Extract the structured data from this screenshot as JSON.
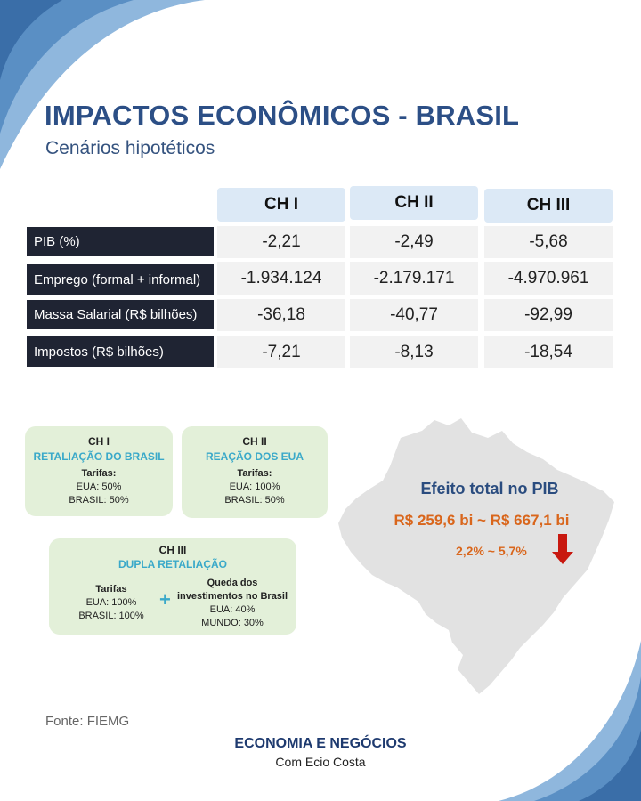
{
  "title": "IMPACTOS ECONÔMICOS - BRASIL",
  "subtitle": "Cenários hipotéticos",
  "table": {
    "columns": [
      "CH I",
      "CH II",
      "CH III"
    ],
    "rows": [
      {
        "label": "PIB (%)",
        "values": [
          "-2,21",
          "-2,49",
          "-5,68"
        ]
      },
      {
        "label": "Emprego (formal + informal)",
        "values": [
          "-1.934.124",
          "-2.179.171",
          "-4.970.961"
        ]
      },
      {
        "label": "Massa Salarial (R$ bilhões)",
        "values": [
          "-36,18",
          "-40,77",
          "-92,99"
        ]
      },
      {
        "label": "Impostos (R$ bilhões)",
        "values": [
          "-7,21",
          "-8,13",
          "-18,54"
        ]
      }
    ]
  },
  "scenarios": {
    "ch1": {
      "name": "CH I",
      "title": "RETALIAÇÃO DO BRASIL",
      "tariffs_label": "Tarifas:",
      "lines": [
        "EUA: 50%",
        "BRASIL: 50%"
      ]
    },
    "ch2": {
      "name": "CH II",
      "title": "REAÇÃO DOS EUA",
      "tariffs_label": "Tarifas:",
      "lines": [
        "EUA: 100%",
        "BRASIL: 50%"
      ]
    },
    "ch3": {
      "name": "CH III",
      "title": "DUPLA RETALIAÇÃO",
      "left_label": "Tarifas",
      "left_lines": [
        "EUA: 100%",
        "BRASIL: 100%"
      ],
      "plus": "+",
      "right_label_1": "Queda dos",
      "right_label_2": "investimentos no Brasil",
      "right_lines": [
        "EUA: 40%",
        "MUNDO: 30%"
      ]
    }
  },
  "map_panel": {
    "heading": "Efeito total no PIB",
    "range": "R$ 259,6 bi ~ R$ 667,1 bi",
    "percent": "2,2%  ~  5,7%"
  },
  "footer": {
    "source": "Fonte: FIEMG",
    "brand": "ECONOMIA E NEGÓCIOS",
    "brand_sub": "Com Ecio Costa"
  },
  "colors": {
    "title": "#2c4f86",
    "row_label_bg": "#1f2433",
    "column_header_bg": "#dce9f6",
    "card_bg": "#e3f0d9",
    "accent_teal": "#3aa9c9",
    "accent_orange": "#d9661c",
    "arrow_red": "#c8180f",
    "map_gray": "#e2e2e2",
    "corner_blue": "#5a8fc4"
  }
}
